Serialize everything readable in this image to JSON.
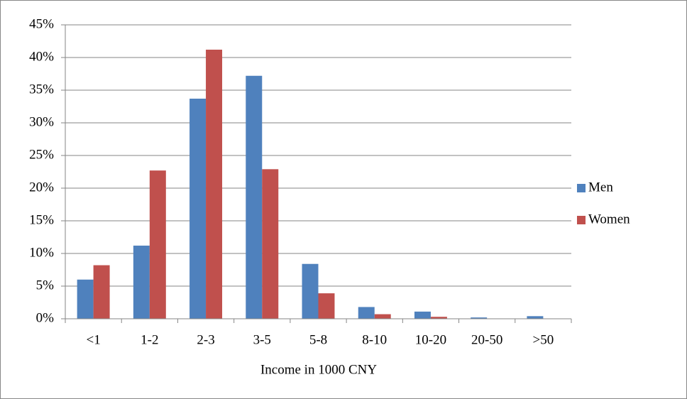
{
  "chart_data": {
    "type": "bar",
    "x_label": "Income in 1000 CNY",
    "categories": [
      "<1",
      "1-2",
      "2-3",
      "3-5",
      "5-8",
      "8-10",
      "10-20",
      "20-50",
      ">50"
    ],
    "series": [
      {
        "name": "Men",
        "color": "#4f81bd",
        "values": [
          6.0,
          11.2,
          33.7,
          37.2,
          8.4,
          1.8,
          1.1,
          0.2,
          0.4
        ]
      },
      {
        "name": "Women",
        "color": "#c0504d",
        "values": [
          8.2,
          22.7,
          41.2,
          22.9,
          3.9,
          0.7,
          0.3,
          0,
          0
        ]
      }
    ],
    "ylim": [
      0,
      45
    ],
    "yticks": [
      {
        "value": 0,
        "label": "0%"
      },
      {
        "value": 5,
        "label": "5%"
      },
      {
        "value": 10,
        "label": "10%"
      },
      {
        "value": 15,
        "label": "15%"
      },
      {
        "value": 20,
        "label": "20%"
      },
      {
        "value": 25,
        "label": "25%"
      },
      {
        "value": 30,
        "label": "30%"
      },
      {
        "value": 35,
        "label": "35%"
      },
      {
        "value": 40,
        "label": "40%"
      },
      {
        "value": 45,
        "label": "45%"
      }
    ],
    "grid": true,
    "legend": "right"
  }
}
